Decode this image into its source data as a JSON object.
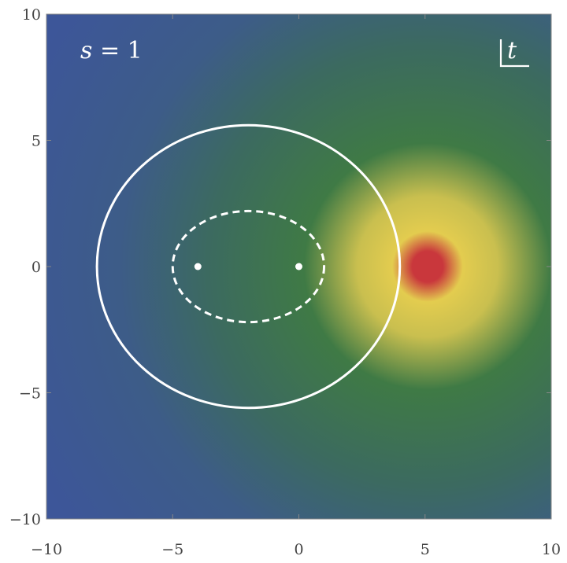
{
  "chart_data": {
    "type": "heatmap",
    "title": "",
    "xlabel": "",
    "ylabel": "",
    "xlim": [
      -10,
      10
    ],
    "ylim": [
      -10,
      10
    ],
    "x_ticks": [
      -10,
      -5,
      0,
      5,
      10
    ],
    "y_ticks": [
      -10,
      -5,
      0,
      5,
      10
    ],
    "x_tick_labels": [
      "−10",
      "−5",
      "0",
      "5",
      "10"
    ],
    "y_tick_labels": [
      "−10",
      "−5",
      "0",
      "5",
      "10"
    ],
    "colormap": [
      "#3d5699",
      "#3f7a45",
      "#e3cc4f",
      "#c9373c"
    ],
    "peak": {
      "x": 5.1,
      "y": 0,
      "color": "#c9373c"
    },
    "solid_circle": {
      "center": [
        -2,
        0
      ],
      "radius_x": 6.0,
      "radius_y": 5.6
    },
    "dashed_ellipse": {
      "center": [
        -2,
        0
      ],
      "radius_x": 3.0,
      "radius_y": 2.2
    },
    "points": [
      {
        "x": -4,
        "y": 0
      },
      {
        "x": 0,
        "y": 0
      }
    ],
    "annotations": {
      "parameter_symbol": "s",
      "parameter_eq": " = 1",
      "corner_symbol": "t"
    },
    "grid": false,
    "legend": "none"
  }
}
